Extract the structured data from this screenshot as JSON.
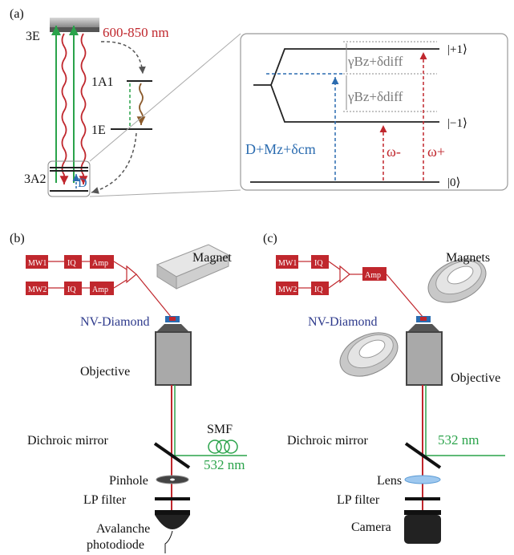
{
  "colors": {
    "red": "#c0272d",
    "green": "#2aa34a",
    "blue": "#2b6cb0",
    "navy": "#2e3a8c",
    "gray": "#7a7a7a",
    "brown": "#8b5a2b"
  },
  "panel_a": {
    "label": "(a)",
    "wavelength": "600-850 nm",
    "level_3E": "3E",
    "level_1A1": "1A1",
    "level_1E": "1E",
    "level_3A2": "3A2",
    "D": "D",
    "kets": [
      "|+1⟩",
      "|−1⟩",
      "|0⟩"
    ],
    "gamma_term": "γBz+δdiff",
    "dm_term": "D+Mz+δcm",
    "omega_minus": "ω-",
    "omega_plus": "ω+"
  },
  "panel_b": {
    "label": "(b)",
    "mw1": "MW1",
    "mw2": "MW2",
    "iq": "IQ",
    "amp": "Amp",
    "magnet": "Magnet",
    "nv": "NV-Diamond",
    "objective": "Objective",
    "dichroic": "Dichroic mirror",
    "smf": "SMF",
    "laser": "532 nm",
    "pinhole": "Pinhole",
    "lp": "LP filter",
    "apd_line1": "Avalanche",
    "apd_line2": "photodiode"
  },
  "panel_c": {
    "label": "(c)",
    "mw1": "MW1",
    "mw2": "MW2",
    "iq": "IQ",
    "amp": "Amp",
    "magnets": "Magnets",
    "nv": "NV-Diamond",
    "objective": "Objective",
    "dichroic": "Dichroic mirror",
    "laser": "532 nm",
    "lens": "Lens",
    "lp": "LP filter",
    "camera": "Camera"
  }
}
